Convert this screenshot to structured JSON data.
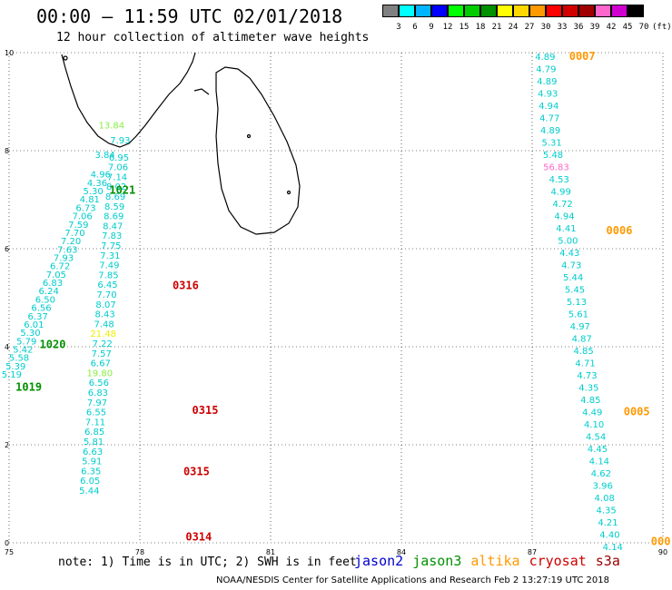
{
  "header": {
    "title": "00:00 – 11:59 UTC 02/01/2018",
    "subtitle": "12 hour collection of altimeter wave heights"
  },
  "legend": {
    "unit": "(ft)",
    "bins": [
      {
        "label": "3",
        "color": "#808080"
      },
      {
        "label": "6",
        "color": "#00ffff"
      },
      {
        "label": "9",
        "color": "#00b4ff"
      },
      {
        "label": "12",
        "color": "#0000ff"
      },
      {
        "label": "15",
        "color": "#00ff00"
      },
      {
        "label": "18",
        "color": "#00cc00"
      },
      {
        "label": "21",
        "color": "#009000"
      },
      {
        "label": "24",
        "color": "#ffff00"
      },
      {
        "label": "27",
        "color": "#ffd700"
      },
      {
        "label": "30",
        "color": "#ff9900"
      },
      {
        "label": "33",
        "color": "#ff0000"
      },
      {
        "label": "36",
        "color": "#d00000"
      },
      {
        "label": "39",
        "color": "#a00000"
      },
      {
        "label": "42",
        "color": "#ff66cc"
      },
      {
        "label": "45",
        "color": "#d000d0"
      },
      {
        "label": "70",
        "color": "#000000"
      }
    ]
  },
  "axes": {
    "x_ticks": [
      "75",
      "78",
      "81",
      "84",
      "87",
      "90"
    ],
    "y_ticks": [
      "0",
      "2",
      "4",
      "6",
      "8",
      "10"
    ],
    "xlim": [
      75,
      90
    ],
    "ylim": [
      0,
      10
    ]
  },
  "footer": {
    "note": "note: 1) Time is in UTC; 2) SWH is in feet",
    "satellites": [
      {
        "name": "jason2",
        "color": "#0000cc"
      },
      {
        "name": "jason3",
        "color": "#009000"
      },
      {
        "name": "altika",
        "color": "#ff9900"
      },
      {
        "name": "cryosat",
        "color": "#cc0000"
      },
      {
        "name": "s3a",
        "color": "#990000"
      }
    ],
    "credit": "NOAA/NESDIS Center for Satellite Applications and Research    Feb  2 13:27:19 UTC 2018"
  },
  "track_a": {
    "color": "#00cccc",
    "values": [
      "3.84",
      "4.96",
      "4.36",
      "5.30",
      "4.81",
      "6.73",
      "7.06",
      "7.59",
      "7.70",
      "7.20",
      "7.63",
      "7.93",
      "6.72",
      "7.05",
      "6.83",
      "6.24",
      "6.50",
      "6.56",
      "6.37",
      "6.01",
      "5.30",
      "5.79",
      "5.42",
      "5.58",
      "5.39",
      "5.19"
    ],
    "lat": [
      7.85,
      7.45,
      7.28,
      7.11,
      6.94,
      6.77,
      6.6,
      6.43,
      6.26,
      6.09,
      5.92,
      5.75,
      5.58,
      5.41,
      5.24,
      5.07,
      4.9,
      4.73,
      4.56,
      4.39,
      4.22,
      4.05,
      3.88,
      3.71,
      3.54,
      3.37
    ],
    "lon": [
      77.2,
      77.1,
      77.02,
      76.93,
      76.85,
      76.76,
      76.68,
      76.59,
      76.51,
      76.42,
      76.34,
      76.25,
      76.17,
      76.08,
      76.0,
      75.91,
      75.83,
      75.74,
      75.66,
      75.57,
      75.49,
      75.4,
      75.32,
      75.23,
      75.15,
      75.06
    ]
  },
  "track_b": {
    "color": "#00cccc",
    "values": [
      "7.93",
      "6.95",
      "7.06",
      "7.14",
      "8.02",
      "8.69",
      "8.59",
      "8.69",
      "8.47",
      "7.83",
      "7.75",
      "7.31",
      "7.49",
      "7.85",
      "6.45",
      "7.70",
      "8.07",
      "8.43",
      "7.48",
      "21.48",
      "7.22",
      "7.57",
      "6.67",
      "19.80",
      "6.56",
      "6.83",
      "7.97",
      "6.55",
      "7.11",
      "6.85",
      "5.81",
      "6.63",
      "5.91",
      "6.35",
      "6.05",
      "5.44"
    ],
    "lat": [
      8.15,
      7.8,
      7.6,
      7.4,
      7.2,
      7.0,
      6.8,
      6.6,
      6.4,
      6.2,
      6.0,
      5.8,
      5.6,
      5.4,
      5.2,
      5.0,
      4.8,
      4.6,
      4.4,
      4.2,
      4.0,
      3.8,
      3.6,
      3.4,
      3.2,
      3.0,
      2.8,
      2.6,
      2.4,
      2.2,
      2.0,
      1.8,
      1.6,
      1.4,
      1.2,
      1.0
    ],
    "lon": [
      77.55,
      77.52,
      77.5,
      77.48,
      77.46,
      77.44,
      77.42,
      77.4,
      77.38,
      77.36,
      77.34,
      77.32,
      77.3,
      77.28,
      77.26,
      77.24,
      77.22,
      77.2,
      77.18,
      77.16,
      77.14,
      77.12,
      77.1,
      77.08,
      77.06,
      77.04,
      77.02,
      77.0,
      76.98,
      76.96,
      76.94,
      76.92,
      76.9,
      76.88,
      76.86,
      76.84
    ],
    "highlights": {
      "19": "#eeee00",
      "23": "#88ee44"
    },
    "extra": [
      {
        "text": "13.84",
        "lat": 8.45,
        "lon": 77.35,
        "color": "#88ee44"
      }
    ]
  },
  "track_c": {
    "color": "#00cccc",
    "values": [
      "4.89",
      "4.79",
      "4.89",
      "4.93",
      "4.94",
      "4.77",
      "4.89",
      "5.31",
      "5.48",
      "56.83",
      "4.53",
      "4.99",
      "4.72",
      "4.94",
      "4.41",
      "5.00",
      "4.43",
      "4.73",
      "5.44",
      "5.45",
      "5.13",
      "5.61",
      "4.97",
      "4.87",
      "4.85",
      "4.71",
      "4.73",
      "4.35",
      "4.85",
      "4.49",
      "4.10",
      "4.54",
      "4.45",
      "4.14",
      "4.62",
      "3.96",
      "4.08",
      "4.35",
      "4.21",
      "4.40",
      "4.14"
    ],
    "lat": [
      9.85,
      9.6,
      9.35,
      9.1,
      8.85,
      8.6,
      8.35,
      8.1,
      7.85,
      7.6,
      7.35,
      7.1,
      6.85,
      6.6,
      6.35,
      6.1,
      5.85,
      5.6,
      5.35,
      5.1,
      4.85,
      4.6,
      4.35,
      4.1,
      3.85,
      3.6,
      3.35,
      3.1,
      2.85,
      2.6,
      2.35,
      2.1,
      1.85,
      1.6,
      1.35,
      1.1,
      0.85,
      0.6,
      0.35,
      0.1,
      -0.15
    ],
    "lon": [
      87.3,
      87.32,
      87.34,
      87.36,
      87.38,
      87.4,
      87.42,
      87.45,
      87.48,
      87.55,
      87.62,
      87.66,
      87.7,
      87.74,
      87.78,
      87.82,
      87.86,
      87.9,
      87.94,
      87.98,
      88.02,
      88.06,
      88.1,
      88.14,
      88.18,
      88.22,
      88.26,
      88.3,
      88.34,
      88.38,
      88.42,
      88.46,
      88.5,
      88.54,
      88.58,
      88.62,
      88.66,
      88.7,
      88.74,
      88.78,
      88.85
    ],
    "highlights": {
      "9": "#ff66cc"
    }
  },
  "pass_labels": [
    {
      "text": "0007",
      "lat": 9.85,
      "lon": 88.15,
      "color": "#ff9900"
    },
    {
      "text": "1021",
      "lat": 7.12,
      "lon": 77.6,
      "color": "#009000"
    },
    {
      "text": "0006",
      "lat": 6.3,
      "lon": 89.0,
      "color": "#ff9900"
    },
    {
      "text": "0316",
      "lat": 5.18,
      "lon": 79.05,
      "color": "#cc0000"
    },
    {
      "text": "1020",
      "lat": 3.97,
      "lon": 76.0,
      "color": "#009000"
    },
    {
      "text": "1019",
      "lat": 3.1,
      "lon": 75.45,
      "color": "#009000"
    },
    {
      "text": "0315",
      "lat": 2.63,
      "lon": 79.5,
      "color": "#cc0000"
    },
    {
      "text": "0005",
      "lat": 2.6,
      "lon": 89.4,
      "color": "#ff9900"
    },
    {
      "text": "0315",
      "lat": 1.38,
      "lon": 79.3,
      "color": "#cc0000"
    },
    {
      "text": "0314",
      "lat": 0.05,
      "lon": 79.35,
      "color": "#cc0000"
    },
    {
      "text": "000",
      "lat": -0.05,
      "lon": 89.95,
      "color": "#ff9900"
    }
  ]
}
